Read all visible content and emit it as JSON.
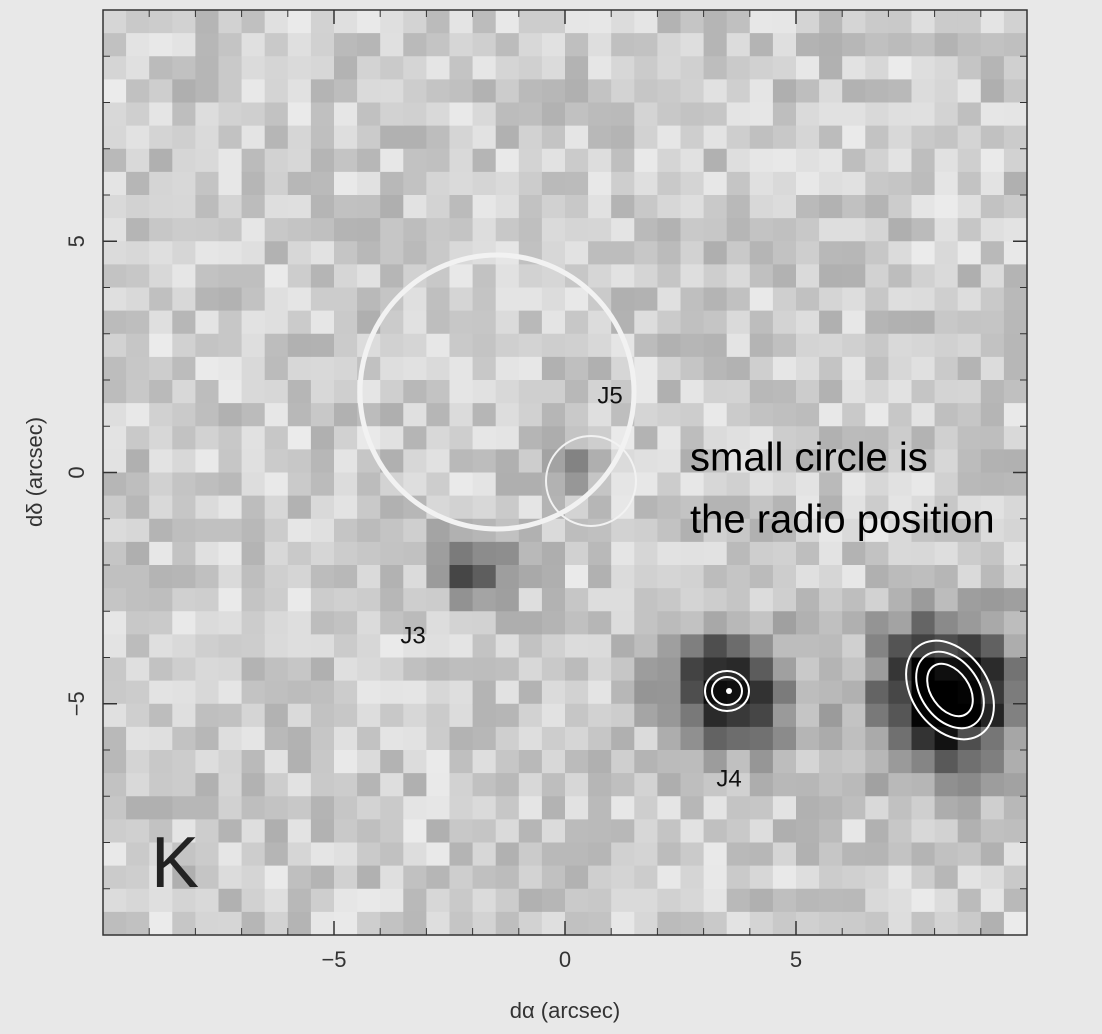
{
  "chart_data": {
    "type": "image",
    "band": "K",
    "x_label": "dα (arcsec)",
    "y_label": "dδ (arcsec)",
    "xlim": [
      -10,
      10
    ],
    "ylim": [
      -10,
      10
    ],
    "xticks": [
      {
        "value": -5,
        "label": "−5"
      },
      0,
      5
    ],
    "yticks": [
      {
        "value": -5,
        "label": "−5"
      },
      0,
      5
    ],
    "source_labels": [
      "J5",
      "J3",
      "J4"
    ],
    "annotation": [
      "small circle is",
      "the radio position"
    ]
  }
}
